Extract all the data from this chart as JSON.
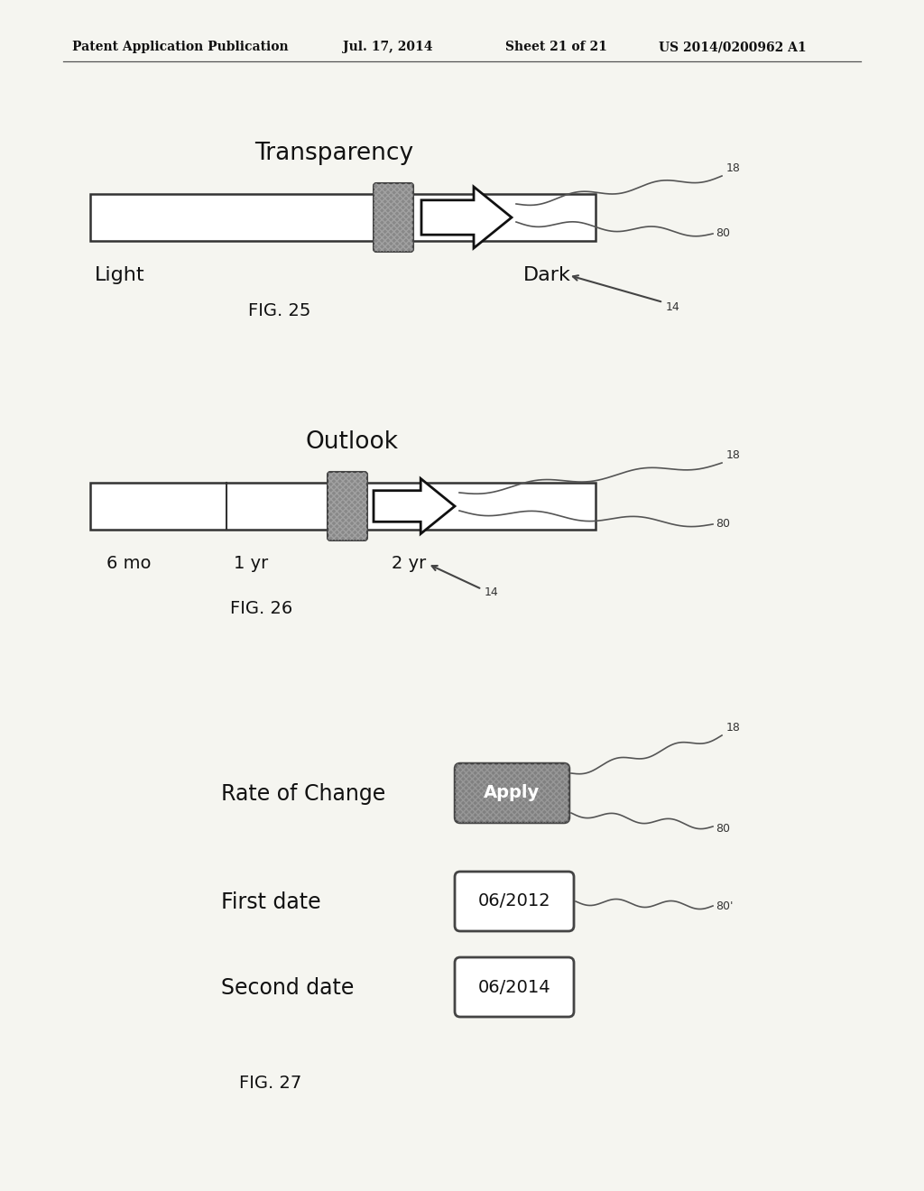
{
  "bg_color": "#f5f5f0",
  "header_text": "Patent Application Publication",
  "header_date": "Jul. 17, 2014",
  "header_sheet": "Sheet 21 of 21",
  "header_patent": "US 2014/0200962 A1",
  "fig25": {
    "title": "Transparency",
    "label_left": "Light",
    "label_right": "Dark",
    "fig_label": "FIG. 25",
    "ref_18": "18",
    "ref_80": "80",
    "ref_14": "14"
  },
  "fig26": {
    "title": "Outlook",
    "label_6mo": "6 mo",
    "label_1yr": "1 yr",
    "label_2yr": "2 yr",
    "fig_label": "FIG. 26",
    "ref_18": "18",
    "ref_80": "80",
    "ref_14": "14"
  },
  "fig27": {
    "title": "Rate of Change",
    "apply_text": "Apply",
    "first_date_label": "First date",
    "first_date_value": "06/2012",
    "second_date_label": "Second date",
    "second_date_value": "06/2014",
    "fig_label": "FIG. 27",
    "ref_18": "18",
    "ref_80": "80",
    "ref_80p": "80'"
  }
}
